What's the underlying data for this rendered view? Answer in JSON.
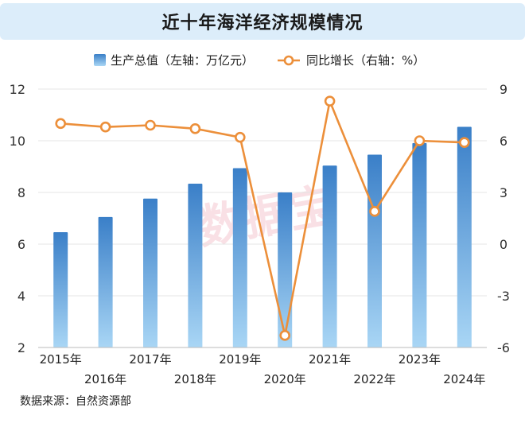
{
  "title": "近十年海洋经济规模情况",
  "source": "数据来源：自然资源部",
  "watermark": "数据宝",
  "colors": {
    "bar_top": "#3a7fc8",
    "bar_bottom": "#a9d6f5",
    "line": "#ec8f3a",
    "title_bg": "#dcedfa",
    "watermark": "#f4c7cf"
  },
  "chart_data": {
    "type": "bar",
    "categories": [
      "2015年",
      "2016年",
      "2017年",
      "2018年",
      "2019年",
      "2020年",
      "2021年",
      "2022年",
      "2023年",
      "2024年"
    ],
    "series": [
      {
        "name": "生产总值（左轴：万亿元）",
        "type": "bar",
        "axis": "left",
        "values": [
          6.46,
          7.05,
          7.76,
          8.34,
          8.94,
          8.0,
          9.04,
          9.46,
          9.91,
          10.54
        ]
      },
      {
        "name": "同比增长（右轴：%）",
        "type": "line",
        "axis": "right",
        "values": [
          7.0,
          6.8,
          6.9,
          6.7,
          6.2,
          -5.3,
          8.3,
          1.9,
          6.0,
          5.9
        ]
      }
    ],
    "left_axis": {
      "min": 2,
      "max": 12,
      "ticks": [
        "2",
        "4",
        "6",
        "8",
        "10",
        "12"
      ]
    },
    "right_axis": {
      "min": -6,
      "max": 9,
      "ticks": [
        "-6",
        "-3",
        "0",
        "3",
        "6",
        "9"
      ]
    },
    "legend_position": "top",
    "grid": true
  }
}
